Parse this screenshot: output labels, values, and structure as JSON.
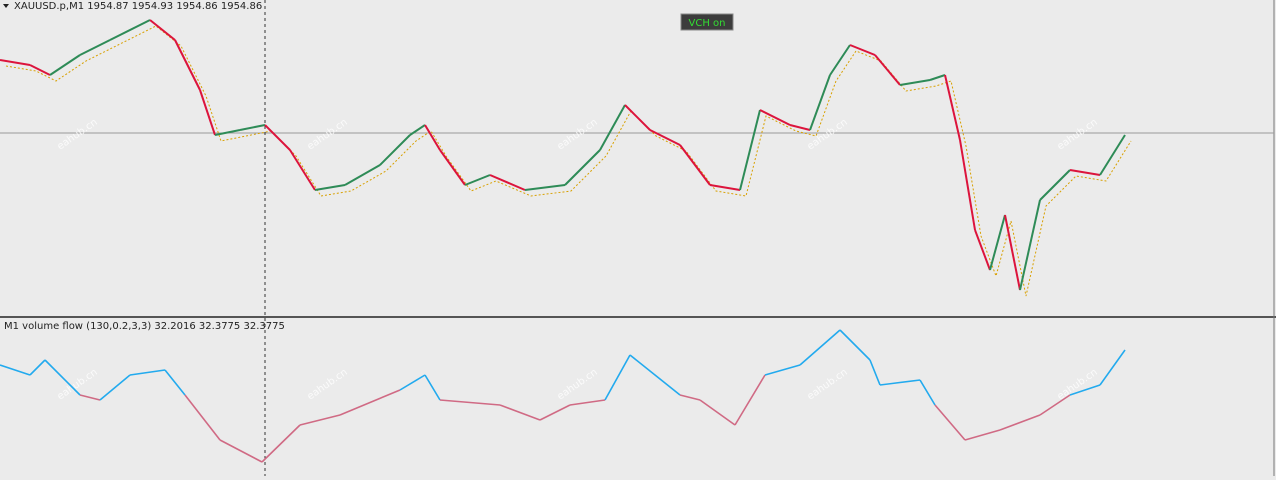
{
  "header": {
    "symbol_line": "XAUUSD.p,M1  1954.87 1954.93 1954.86 1954.86",
    "badge": "VCH on"
  },
  "indicator": {
    "label": "M1 volume flow (130,0.2,3,3) 32.2016 32.3775 32.3775"
  },
  "watermark": "eahub.cn"
}
